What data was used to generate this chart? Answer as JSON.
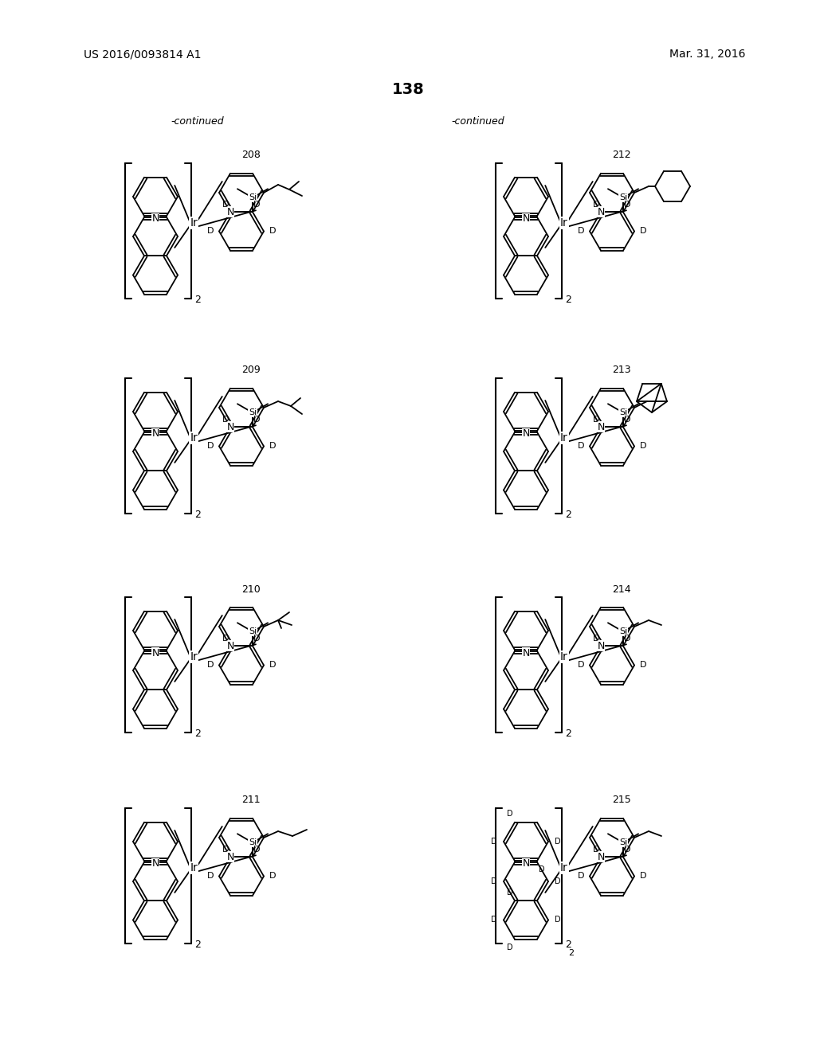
{
  "page_number": "138",
  "patent_number": "US 2016/0093814 A1",
  "patent_date": "Mar. 31, 2016",
  "continued_left": "-continued",
  "continued_right": "-continued",
  "bg_color": "#ffffff",
  "text_color": "#000000",
  "compound_numbers": [
    "208",
    "209",
    "210",
    "211",
    "212",
    "213",
    "214",
    "215"
  ],
  "figsize": [
    10.24,
    13.2
  ],
  "dpi": 100
}
